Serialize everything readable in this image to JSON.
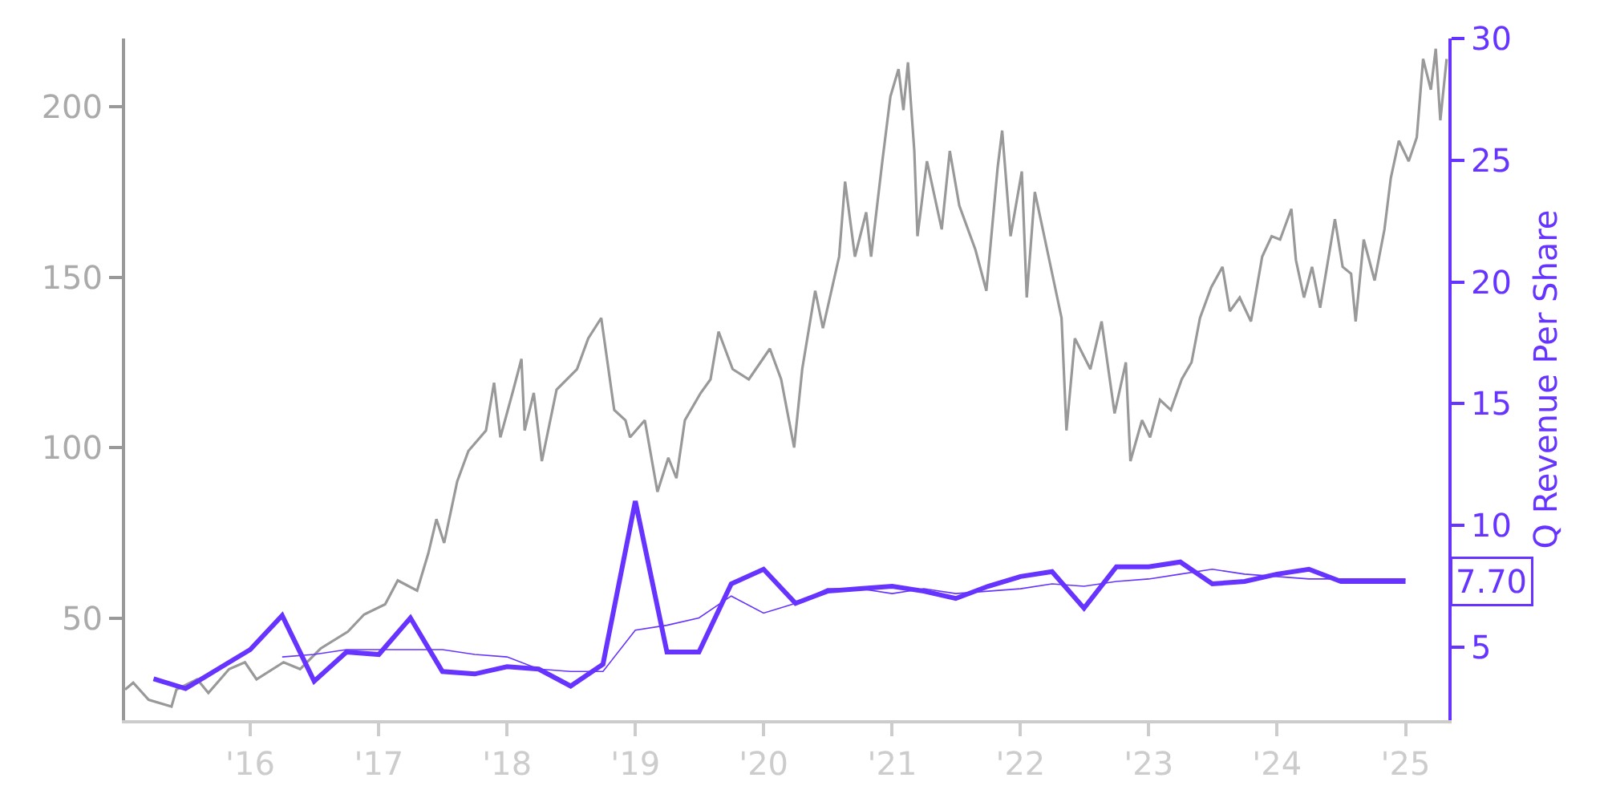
{
  "chart_data": {
    "type": "line",
    "y2label": "Q Revenue Per Share",
    "xlim": [
      "2015-01-10",
      "2025-05-03"
    ],
    "xticks": [
      {
        "value": "2016-01-01",
        "label": "'16"
      },
      {
        "value": "2017-01-01",
        "label": "'17"
      },
      {
        "value": "2018-01-01",
        "label": "'18"
      },
      {
        "value": "2019-01-01",
        "label": "'19"
      },
      {
        "value": "2020-01-01",
        "label": "'20"
      },
      {
        "value": "2021-01-01",
        "label": "'21"
      },
      {
        "value": "2022-01-01",
        "label": "'22"
      },
      {
        "value": "2023-01-01",
        "label": "'23"
      },
      {
        "value": "2024-01-01",
        "label": "'24"
      },
      {
        "value": "2025-01-01",
        "label": "'25"
      }
    ],
    "ylim": [
      20,
      220
    ],
    "yticks": [
      50,
      100,
      150,
      200
    ],
    "y2lim": [
      2,
      30
    ],
    "y2ticks": [
      5,
      10,
      15,
      20,
      25,
      30
    ],
    "marker": "none",
    "line_style": "solid",
    "series": [
      {
        "color": "#999999",
        "axis": "y",
        "x": [
          "2015-01-10",
          "2015-02-02",
          "2015-03-18",
          "2015-05-22",
          "2015-06-05",
          "2015-08-03",
          "2015-09-04",
          "2015-11-02",
          "2015-12-17",
          "2016-01-19",
          "2016-04-05",
          "2016-05-22",
          "2016-07-19",
          "2016-10-05",
          "2016-11-20",
          "2017-01-19",
          "2017-02-24",
          "2017-04-20",
          "2017-05-22",
          "2017-06-14",
          "2017-07-06",
          "2017-08-12",
          "2017-09-13",
          "2017-11-02",
          "2017-11-25",
          "2017-12-13",
          "2018-01-19",
          "2018-02-11",
          "2018-02-20",
          "2018-03-18",
          "2018-04-10",
          "2018-05-22",
          "2018-07-19",
          "2018-08-20",
          "2018-09-26",
          "2018-11-02",
          "2018-12-04",
          "2018-12-17",
          "2019-01-28",
          "2019-03-05",
          "2019-04-05",
          "2019-04-28",
          "2019-05-22",
          "2019-07-06",
          "2019-08-03",
          "2019-08-26",
          "2019-10-05",
          "2019-11-20",
          "2020-01-19",
          "2020-02-20",
          "2020-03-28",
          "2020-04-20",
          "2020-05-27",
          "2020-06-18",
          "2020-08-03",
          "2020-08-20",
          "2020-09-17",
          "2020-10-19",
          "2020-11-02",
          "2020-12-04",
          "2020-12-27",
          "2021-01-19",
          "2021-02-02",
          "2021-02-15",
          "2021-03-05",
          "2021-03-14",
          "2021-04-10",
          "2021-05-22",
          "2021-06-14",
          "2021-07-11",
          "2021-08-26",
          "2021-09-26",
          "2021-10-28",
          "2021-11-10",
          "2021-12-04",
          "2022-01-05",
          "2022-01-19",
          "2022-02-11",
          "2022-03-18",
          "2022-04-28",
          "2022-05-12",
          "2022-06-05",
          "2022-07-19",
          "2022-08-20",
          "2022-09-26",
          "2022-10-28",
          "2022-11-10",
          "2022-12-13",
          "2023-01-05",
          "2023-02-02",
          "2023-03-05",
          "2023-04-05",
          "2023-05-03",
          "2023-05-27",
          "2023-06-28",
          "2023-07-30",
          "2023-08-20",
          "2023-09-17",
          "2023-10-19",
          "2023-11-20",
          "2023-12-17",
          "2024-01-10",
          "2024-02-11",
          "2024-02-24",
          "2024-03-18",
          "2024-04-10",
          "2024-05-03",
          "2024-06-14",
          "2024-07-06",
          "2024-07-30",
          "2024-08-12",
          "2024-09-04",
          "2024-10-05",
          "2024-11-02",
          "2024-11-20",
          "2024-12-13",
          "2025-01-10",
          "2025-02-02",
          "2025-02-20",
          "2025-03-14",
          "2025-03-28",
          "2025-04-10",
          "2025-04-28"
        ],
        "values": [
          29,
          31,
          26,
          24,
          29,
          32,
          28,
          35,
          37,
          32,
          37,
          35,
          41,
          46,
          51,
          54,
          61,
          58,
          69,
          79,
          72,
          90,
          99,
          105,
          119,
          103,
          117,
          126,
          105,
          116,
          96,
          117,
          123,
          132,
          138,
          111,
          108,
          103,
          108,
          87,
          97,
          91,
          108,
          116,
          120,
          134,
          123,
          120,
          129,
          120,
          100,
          123,
          146,
          135,
          156,
          178,
          156,
          169,
          156,
          184,
          203,
          211,
          199,
          213,
          187,
          162,
          184,
          164,
          187,
          171,
          158,
          146,
          182,
          193,
          162,
          181,
          144,
          175,
          158,
          138,
          105,
          132,
          123,
          137,
          110,
          125,
          96,
          108,
          103,
          114,
          111,
          120,
          125,
          138,
          147,
          153,
          140,
          144,
          137,
          156,
          162,
          161,
          170,
          155,
          144,
          153,
          141,
          167,
          153,
          151,
          137,
          161,
          149,
          164,
          179,
          190,
          184,
          191,
          214,
          205,
          217,
          196,
          214
        ]
      },
      {
        "color": "#6633ff",
        "axis": "y2",
        "x": [
          "2015-04",
          "2015-07",
          "2015-10",
          "2016-01",
          "2016-04",
          "2016-07",
          "2016-10",
          "2017-01",
          "2017-04",
          "2017-07",
          "2017-10",
          "2018-01",
          "2018-04",
          "2018-07",
          "2018-10",
          "2019-01",
          "2019-04",
          "2019-07",
          "2019-10",
          "2020-01",
          "2020-04",
          "2020-07",
          "2020-10",
          "2021-01",
          "2021-04",
          "2021-07",
          "2021-10",
          "2022-01",
          "2022-04",
          "2022-07",
          "2022-10",
          "2023-01",
          "2023-04",
          "2023-07",
          "2023-10",
          "2024-01",
          "2024-04",
          "2024-07",
          "2024-10",
          "2025-01"
        ],
        "values": [
          3.7,
          3.3,
          4.1,
          4.9,
          6.3,
          3.6,
          4.8,
          4.7,
          6.2,
          4.0,
          3.9,
          4.2,
          4.1,
          3.4,
          4.3,
          11.0,
          4.8,
          4.8,
          7.6,
          8.2,
          6.8,
          7.3,
          7.4,
          7.5,
          7.3,
          7.0,
          7.5,
          7.9,
          8.1,
          6.6,
          8.3,
          8.3,
          8.5,
          7.6,
          7.7,
          8.0,
          8.2,
          7.7,
          7.7,
          7.7
        ],
        "value_labels": [
          null,
          null,
          null,
          null,
          null,
          null,
          null,
          null,
          null,
          null,
          null,
          null,
          null,
          null,
          null,
          null,
          null,
          null,
          null,
          null,
          null,
          null,
          null,
          null,
          null,
          null,
          null,
          null,
          null,
          null,
          null,
          null,
          null,
          null,
          null,
          null,
          null,
          null,
          null,
          "7.70"
        ]
      },
      {
        "color": "#6633ff",
        "axis": "y2",
        "x": [
          "2016-04",
          "2016-07",
          "2016-10",
          "2017-01",
          "2017-04",
          "2017-07",
          "2017-10",
          "2018-01",
          "2018-04",
          "2018-07",
          "2018-10",
          "2019-01",
          "2019-04",
          "2019-07",
          "2019-10",
          "2020-01",
          "2020-04",
          "2020-07",
          "2020-10",
          "2021-01",
          "2021-04",
          "2021-07",
          "2021-10",
          "2022-01",
          "2022-04",
          "2022-07",
          "2022-10",
          "2023-01",
          "2023-04",
          "2023-07",
          "2023-10",
          "2024-01",
          "2024-04",
          "2024-07",
          "2024-10",
          "2025-01"
        ],
        "values": [
          4.6,
          4.7,
          4.9,
          4.9,
          4.9,
          4.9,
          4.7,
          4.6,
          4.1,
          4.0,
          4.0,
          5.7,
          5.9,
          6.2,
          7.1,
          6.4,
          6.8,
          7.4,
          7.4,
          7.2,
          7.4,
          7.2,
          7.3,
          7.4,
          7.6,
          7.5,
          7.7,
          7.8,
          8.0,
          8.2,
          8.0,
          7.9,
          7.8,
          7.8,
          7.8,
          7.8
        ]
      }
    ]
  }
}
